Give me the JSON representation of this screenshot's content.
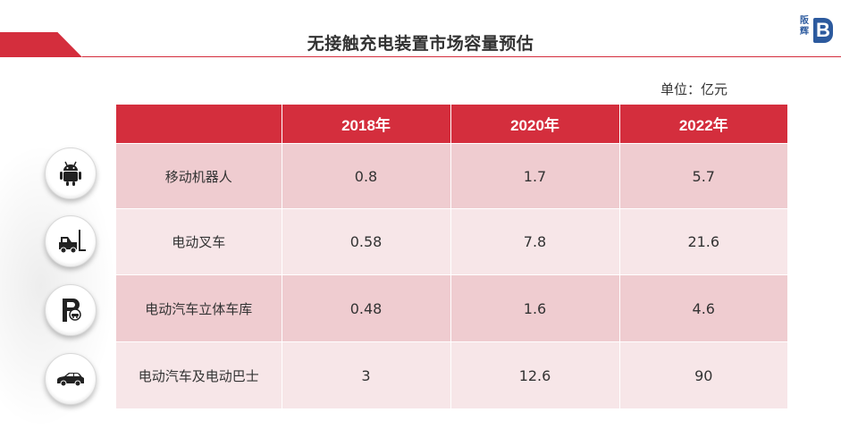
{
  "title": "无接触充电装置市场容量预估",
  "logo": {
    "text": "阪辉",
    "letter": "B"
  },
  "unit": "单位：亿元",
  "table": {
    "headers": [
      "",
      "2018年",
      "2020年",
      "2022年"
    ],
    "rows": [
      {
        "icon": "android-robot-icon",
        "label": "移动机器人",
        "values": [
          "0.8",
          "1.7",
          "5.7"
        ]
      },
      {
        "icon": "forklift-icon",
        "label": "电动叉车",
        "values": [
          "0.58",
          "7.8",
          "21.6"
        ]
      },
      {
        "icon": "parking-garage-icon",
        "label": "电动汽车立体车库",
        "values": [
          "0.48",
          "1.6",
          "4.6"
        ]
      },
      {
        "icon": "car-icon",
        "label": "电动汽车及电动巴士",
        "values": [
          "3",
          "12.6",
          "90"
        ]
      }
    ]
  },
  "colors": {
    "accent": "#d42e3d",
    "row_dark": "#efccd0",
    "row_light": "#f7e6e8",
    "logo": "#2c5a9e"
  }
}
